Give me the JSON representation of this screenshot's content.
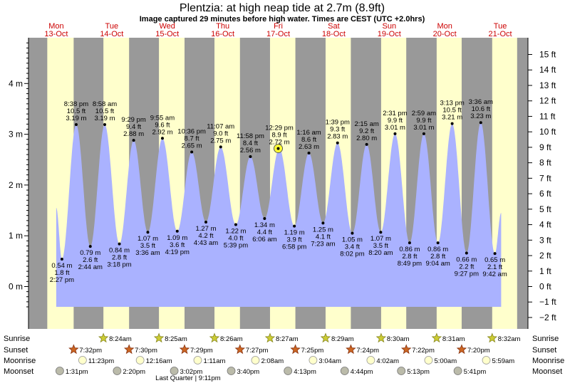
{
  "header": {
    "title": "Plentzia: at high  neap tide at 2.7m (8.9ft)",
    "subtitle": "Image captured 29 minutes before high water. Times are CEST (UTC +2.0hrs)"
  },
  "days": [
    {
      "dow": "Mon",
      "date": "13-Oct"
    },
    {
      "dow": "Tue",
      "date": "14-Oct"
    },
    {
      "dow": "Wed",
      "date": "15-Oct"
    },
    {
      "dow": "Thu",
      "date": "16-Oct"
    },
    {
      "dow": "Fri",
      "date": "17-Oct"
    },
    {
      "dow": "Sat",
      "date": "18-Oct"
    },
    {
      "dow": "Sun",
      "date": "19-Oct"
    },
    {
      "dow": "Mon",
      "date": "20-Oct"
    },
    {
      "dow": "Tue",
      "date": "21-Oct"
    }
  ],
  "chart_data": {
    "type": "area",
    "x_unit": "hours since Mon 13-Oct 00:00 CEST",
    "y_unit": "m",
    "ylim": [
      -0.45,
      4.85
    ],
    "left_ticks": [
      "0 m",
      "1 m",
      "2 m",
      "3 m",
      "4 m"
    ],
    "right_ticks": [
      "−2 ft",
      "−1 ft",
      "0 ft",
      "1 ft",
      "2 ft",
      "3 ft",
      "4 ft",
      "5 ft",
      "6 ft",
      "7 ft",
      "8 ft",
      "9 ft",
      "10 ft",
      "11 ft",
      "12 ft",
      "13 ft",
      "14 ft",
      "15 ft"
    ],
    "extremes": [
      {
        "type": "low",
        "t": 14.45,
        "m": 0.54,
        "time": "2:27 pm",
        "m_label": "0.54 m",
        "ft_label": "1.8 ft"
      },
      {
        "type": "high",
        "t": 20.63,
        "m": 3.19,
        "time": "8:38 pm",
        "m_label": "3.19 m",
        "ft_label": "10.5 ft"
      },
      {
        "type": "low",
        "t": 26.73,
        "m": 0.79,
        "time": "2:44 am",
        "m_label": "0.79 m",
        "ft_label": "2.6 ft"
      },
      {
        "type": "high",
        "t": 32.97,
        "m": 3.19,
        "time": "8:58 am",
        "m_label": "3.19 m",
        "ft_label": "10.5 ft"
      },
      {
        "type": "low",
        "t": 39.3,
        "m": 0.84,
        "time": "3:18 pm",
        "m_label": "0.84 m",
        "ft_label": "2.8 ft"
      },
      {
        "type": "high",
        "t": 45.48,
        "m": 2.88,
        "time": "9:29 pm",
        "m_label": "2.88 m",
        "ft_label": "9.4 ft"
      },
      {
        "type": "low",
        "t": 51.6,
        "m": 1.07,
        "time": "3:36 am",
        "m_label": "1.07 m",
        "ft_label": "3.5 ft"
      },
      {
        "type": "high",
        "t": 57.92,
        "m": 2.92,
        "time": "9:55 am",
        "m_label": "2.92 m",
        "ft_label": "9.6 ft"
      },
      {
        "type": "low",
        "t": 64.32,
        "m": 1.09,
        "time": "4:19 pm",
        "m_label": "1.09 m",
        "ft_label": "3.6 ft"
      },
      {
        "type": "high",
        "t": 70.6,
        "m": 2.65,
        "time": "10:36 pm",
        "m_label": "2.65 m",
        "ft_label": "8.7 ft"
      },
      {
        "type": "low",
        "t": 76.72,
        "m": 1.27,
        "time": "4:43 am",
        "m_label": "1.27 m",
        "ft_label": "4.2 ft"
      },
      {
        "type": "high",
        "t": 83.12,
        "m": 2.75,
        "time": "11:07 am",
        "m_label": "2.75 m",
        "ft_label": "9.0 ft"
      },
      {
        "type": "low",
        "t": 89.65,
        "m": 1.22,
        "time": "5:39 pm",
        "m_label": "1.22 m",
        "ft_label": "4.0 ft"
      },
      {
        "type": "high",
        "t": 95.97,
        "m": 2.56,
        "time": "11:58 pm",
        "m_label": "2.56 m",
        "ft_label": "8.4 ft"
      },
      {
        "type": "low",
        "t": 102.1,
        "m": 1.34,
        "time": "6:06 am",
        "m_label": "1.34 m",
        "ft_label": "4.4 ft"
      },
      {
        "type": "high",
        "t": 108.48,
        "m": 2.72,
        "time": "12:29 pm",
        "m_label": "2.72 m",
        "ft_label": "8.9 ft"
      },
      {
        "type": "low",
        "t": 114.97,
        "m": 1.19,
        "time": "6:58 pm",
        "m_label": "1.19 m",
        "ft_label": "3.9 ft"
      },
      {
        "type": "high",
        "t": 121.27,
        "m": 2.63,
        "time": "1:16 am",
        "m_label": "2.63 m",
        "ft_label": "8.6 ft"
      },
      {
        "type": "low",
        "t": 127.38,
        "m": 1.25,
        "time": "7:23 am",
        "m_label": "1.25 m",
        "ft_label": "4.1 ft"
      },
      {
        "type": "high",
        "t": 133.65,
        "m": 2.83,
        "time": "1:39 pm",
        "m_label": "2.83 m",
        "ft_label": "9.3 ft"
      },
      {
        "type": "low",
        "t": 140.03,
        "m": 1.05,
        "time": "8:02 pm",
        "m_label": "1.05 m",
        "ft_label": "3.4 ft"
      },
      {
        "type": "high",
        "t": 146.25,
        "m": 2.8,
        "time": "2:15 am",
        "m_label": "2.80 m",
        "ft_label": "9.2 ft"
      },
      {
        "type": "low",
        "t": 152.33,
        "m": 1.07,
        "time": "8:20 am",
        "m_label": "1.07 m",
        "ft_label": "3.5 ft"
      },
      {
        "type": "high",
        "t": 158.52,
        "m": 3.01,
        "time": "2:31 pm",
        "m_label": "3.01 m",
        "ft_label": "9.9 ft"
      },
      {
        "type": "low",
        "t": 164.82,
        "m": 0.86,
        "time": "8:49 pm",
        "m_label": "0.86 m",
        "ft_label": "2.8 ft"
      },
      {
        "type": "high",
        "t": 170.98,
        "m": 3.01,
        "time": "2:59 am",
        "m_label": "3.01 m",
        "ft_label": "9.9 ft"
      },
      {
        "type": "low",
        "t": 177.07,
        "m": 0.86,
        "time": "9:04 am",
        "m_label": "0.86 m",
        "ft_label": "2.8 ft"
      },
      {
        "type": "high",
        "t": 183.22,
        "m": 3.21,
        "time": "3:13 pm",
        "m_label": "3.21 m",
        "ft_label": "10.5 ft"
      },
      {
        "type": "low",
        "t": 189.45,
        "m": 0.66,
        "time": "9:27 pm",
        "m_label": "0.66 m",
        "ft_label": "2.2 ft"
      },
      {
        "type": "high",
        "t": 195.6,
        "m": 3.23,
        "time": "3:36 am",
        "m_label": "3.23 m",
        "ft_label": "10.6 ft"
      },
      {
        "type": "low",
        "t": 201.7,
        "m": 0.65,
        "time": "9:42 am",
        "m_label": "0.65 m",
        "ft_label": "2.1 ft"
      }
    ],
    "curve_start_t": 12.0,
    "curve_start_m": 1.55,
    "curve_end_t": 204.4,
    "curve_end_m": 1.45,
    "current_t": 108.0,
    "current_m": 2.72,
    "nights": [
      [
        0,
        8.12
      ],
      [
        19.53,
        32.4
      ],
      [
        43.5,
        56.42
      ],
      [
        67.48,
        80.43
      ],
      [
        91.45,
        104.45
      ],
      [
        115.42,
        128.48
      ],
      [
        139.4,
        152.5
      ],
      [
        163.37,
        176.52
      ],
      [
        187.33,
        200.53
      ],
      [
        211.32,
        216
      ]
    ],
    "night_color": "#999999",
    "day_color": "#ffffcc",
    "water_color": "#aab2ff"
  },
  "events": {
    "rows": [
      "Sunrise",
      "Sunset",
      "Moonrise",
      "Moonset"
    ],
    "sunrise": [
      {
        "t": 32.4,
        "label": "8:24am"
      },
      {
        "t": 56.42,
        "label": "8:25am"
      },
      {
        "t": 80.43,
        "label": "8:26am"
      },
      {
        "t": 104.45,
        "label": "8:27am"
      },
      {
        "t": 128.48,
        "label": "8:29am"
      },
      {
        "t": 152.5,
        "label": "8:30am"
      },
      {
        "t": 176.52,
        "label": "8:31am"
      },
      {
        "t": 200.53,
        "label": "8:32am"
      }
    ],
    "sunset": [
      {
        "t": 19.53,
        "label": "7:32pm"
      },
      {
        "t": 43.5,
        "label": "7:30pm"
      },
      {
        "t": 67.48,
        "label": "7:29pm"
      },
      {
        "t": 91.45,
        "label": "7:27pm"
      },
      {
        "t": 115.42,
        "label": "7:25pm"
      },
      {
        "t": 139.4,
        "label": "7:24pm"
      },
      {
        "t": 163.37,
        "label": "7:22pm"
      },
      {
        "t": 187.33,
        "label": "7:20pm"
      }
    ],
    "moonrise": [
      {
        "t": 23.38,
        "label": "11:23pm"
      },
      {
        "t": 48.27,
        "label": "12:16am"
      },
      {
        "t": 73.18,
        "label": "1:11am"
      },
      {
        "t": 98.13,
        "label": "2:08am"
      },
      {
        "t": 123.07,
        "label": "3:04am"
      },
      {
        "t": 148.03,
        "label": "4:02am"
      },
      {
        "t": 173.0,
        "label": "5:00am"
      },
      {
        "t": 197.98,
        "label": "5:59am"
      }
    ],
    "moonset": [
      {
        "t": 13.52,
        "label": "1:31pm"
      },
      {
        "t": 38.33,
        "label": "2:20pm"
      },
      {
        "t": 63.03,
        "label": "3:02pm"
      },
      {
        "t": 87.67,
        "label": "3:40pm"
      },
      {
        "t": 112.22,
        "label": "4:13pm"
      },
      {
        "t": 136.73,
        "label": "4:44pm"
      },
      {
        "t": 161.22,
        "label": "5:13pm"
      },
      {
        "t": 185.68,
        "label": "5:41pm"
      }
    ],
    "note": "Last Quarter | 9:11pm",
    "note_t": 69.0
  }
}
